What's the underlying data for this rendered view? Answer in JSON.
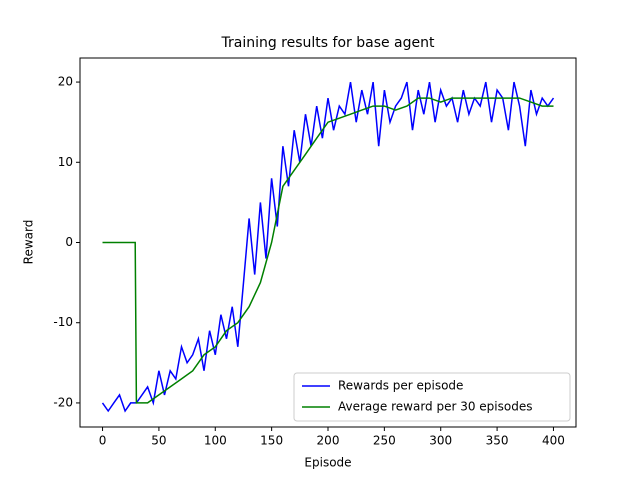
{
  "chart_data": {
    "type": "line",
    "title": "Training results for base agent",
    "xlabel": "Episode",
    "ylabel": "Reward",
    "xlim": [
      -20,
      420
    ],
    "xticks": [
      0,
      50,
      100,
      150,
      200,
      250,
      300,
      350,
      400
    ],
    "ylim": [
      -23,
      23
    ],
    "yticks": [
      -20,
      -10,
      0,
      10,
      20
    ],
    "legend": "lower right",
    "series": [
      {
        "name": "Rewards per episode",
        "color": "#0000ff",
        "x": [
          0,
          5,
          10,
          15,
          20,
          25,
          30,
          35,
          40,
          45,
          50,
          55,
          60,
          65,
          70,
          75,
          80,
          85,
          90,
          95,
          100,
          105,
          110,
          115,
          120,
          125,
          130,
          135,
          140,
          145,
          150,
          155,
          160,
          165,
          170,
          175,
          180,
          185,
          190,
          195,
          200,
          205,
          210,
          215,
          220,
          225,
          230,
          235,
          240,
          245,
          250,
          255,
          260,
          265,
          270,
          275,
          280,
          285,
          290,
          295,
          300,
          305,
          310,
          315,
          320,
          325,
          330,
          335,
          340,
          345,
          350,
          355,
          360,
          365,
          370,
          375,
          380,
          385,
          390,
          395,
          400
        ],
        "values": [
          -20,
          -21,
          -20,
          -19,
          -21,
          -20,
          -20,
          -19,
          -18,
          -20,
          -16,
          -19,
          -16,
          -17,
          -13,
          -15,
          -14,
          -12,
          -16,
          -11,
          -14,
          -9,
          -12,
          -8,
          -13,
          -5,
          3,
          -4,
          5,
          -2,
          8,
          2,
          12,
          7,
          14,
          10,
          16,
          12,
          17,
          13,
          18,
          14,
          17,
          16,
          20,
          15,
          19,
          16,
          20,
          12,
          19,
          15,
          17,
          18,
          20,
          14,
          19,
          16,
          20,
          15,
          19,
          17,
          18,
          15,
          19,
          16,
          18,
          17,
          20,
          15,
          19,
          18,
          14,
          20,
          17,
          12,
          19,
          16,
          18,
          17,
          18
        ]
      },
      {
        "name": "Average reward per 30 episodes",
        "color": "#008000",
        "x": [
          0,
          10,
          20,
          29,
          30,
          40,
          50,
          60,
          70,
          80,
          90,
          100,
          110,
          120,
          130,
          140,
          150,
          160,
          170,
          180,
          190,
          200,
          210,
          220,
          230,
          240,
          250,
          260,
          270,
          280,
          290,
          300,
          310,
          320,
          330,
          340,
          350,
          360,
          370,
          380,
          390,
          400
        ],
        "values": [
          0,
          0,
          0,
          0,
          -20,
          -20,
          -19,
          -18,
          -17,
          -16,
          -14,
          -13,
          -11,
          -10,
          -8,
          -5,
          0,
          7,
          9,
          11,
          13,
          15,
          15.5,
          16,
          16.5,
          17,
          17,
          16.5,
          17,
          18,
          18,
          17.5,
          18,
          18,
          18,
          18,
          18,
          18,
          18,
          17.5,
          17,
          17
        ]
      }
    ]
  }
}
